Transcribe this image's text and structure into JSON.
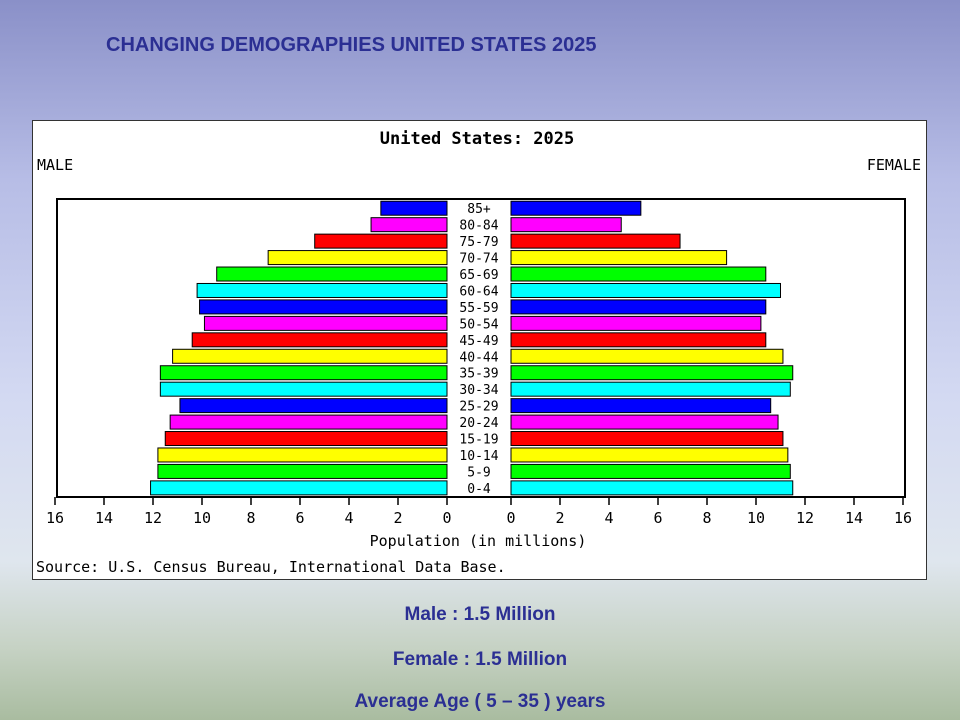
{
  "slide": {
    "title": "CHANGING DEMOGRAPHIES UNITED STATES 2025",
    "captions": [
      "Male : 1.5 Million",
      "Female : 1.5 Million",
      "Average Age ( 5 – 35 ) years"
    ]
  },
  "chart_data": {
    "type": "bar",
    "subtype": "population-pyramid",
    "title": "United States: 2025",
    "left_label": "MALE",
    "right_label": "FEMALE",
    "xlabel": "Population (in millions)",
    "source": "Source: U.S. Census Bureau, International Data Base.",
    "xlim": [
      0,
      16
    ],
    "tick_labels": [
      "16",
      "14",
      "12",
      "10",
      "8",
      "6",
      "4",
      "2",
      "0",
      "0",
      "2",
      "4",
      "6",
      "8",
      "10",
      "12",
      "14",
      "16"
    ],
    "tick_values": [
      16,
      14,
      12,
      10,
      8,
      6,
      4,
      2,
      0
    ],
    "categories": [
      "85+",
      "80-84",
      "75-79",
      "70-74",
      "65-69",
      "60-64",
      "55-59",
      "50-54",
      "45-49",
      "40-44",
      "35-39",
      "30-34",
      "25-29",
      "20-24",
      "15-19",
      "10-14",
      "5-9",
      "0-4"
    ],
    "series": [
      {
        "name": "MALE",
        "values": [
          2.7,
          3.1,
          5.4,
          7.3,
          9.4,
          10.2,
          10.1,
          9.9,
          10.4,
          11.2,
          11.7,
          11.7,
          10.9,
          11.3,
          11.5,
          11.8,
          11.8,
          12.1
        ]
      },
      {
        "name": "FEMALE",
        "values": [
          5.3,
          4.5,
          6.9,
          8.8,
          10.4,
          11.0,
          10.4,
          10.2,
          10.4,
          11.1,
          11.5,
          11.4,
          10.6,
          10.9,
          11.1,
          11.3,
          11.4,
          11.5
        ]
      }
    ],
    "bar_colors": [
      "#0000ff",
      "#ff00ff",
      "#ff0000",
      "#ffff00",
      "#00ff00",
      "#00ffff"
    ],
    "grid": false
  }
}
